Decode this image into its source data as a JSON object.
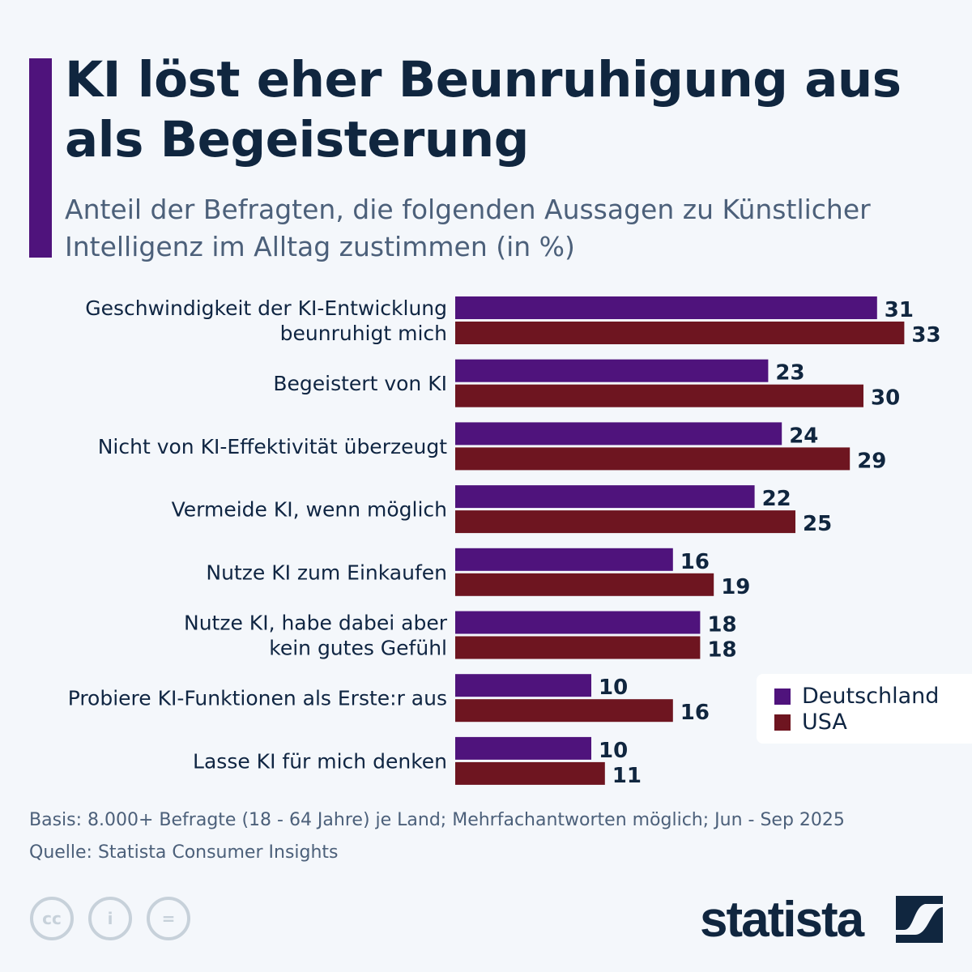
{
  "header": {
    "title": "KI löst eher Beunruhigung aus als Begeisterung",
    "subtitle": "Anteil der Befragten, die folgenden Aussagen zu Künstlicher Intelligenz im Alltag zustimmen (in %)"
  },
  "chart_data": {
    "type": "bar",
    "orientation": "horizontal",
    "categories": [
      [
        "Geschwindigkeit der KI-Entwicklung",
        "beunruhigt mich"
      ],
      [
        "Begeistert von KI"
      ],
      [
        "Nicht von KI-Effektivität überzeugt"
      ],
      [
        "Vermeide KI, wenn möglich"
      ],
      [
        "Nutze KI zum Einkaufen"
      ],
      [
        "Nutze KI, habe dabei aber",
        "kein gutes Gefühl"
      ],
      [
        "Probiere KI-Funktionen als Erste:r aus"
      ],
      [
        "Lasse KI für mich denken"
      ]
    ],
    "series": [
      {
        "name": "Deutschland",
        "color": "#4f137c",
        "values": [
          31,
          23,
          24,
          22,
          16,
          18,
          10,
          10
        ]
      },
      {
        "name": "USA",
        "color": "#6e1520",
        "values": [
          33,
          30,
          29,
          25,
          19,
          18,
          16,
          11
        ]
      }
    ],
    "xlim": [
      0,
      35
    ],
    "grid": false,
    "legend_position": "bottom-right",
    "data_labels": true
  },
  "footer": {
    "basis": "Basis: 8.000+ Befragte (18 - 64 Jahre) je Land; Mehrfachantworten möglich; Jun - Sep 2025",
    "source": "Quelle: Statista Consumer Insights",
    "license_icons": [
      "cc-icon",
      "by-icon",
      "nd-icon"
    ],
    "logo": "statista"
  }
}
